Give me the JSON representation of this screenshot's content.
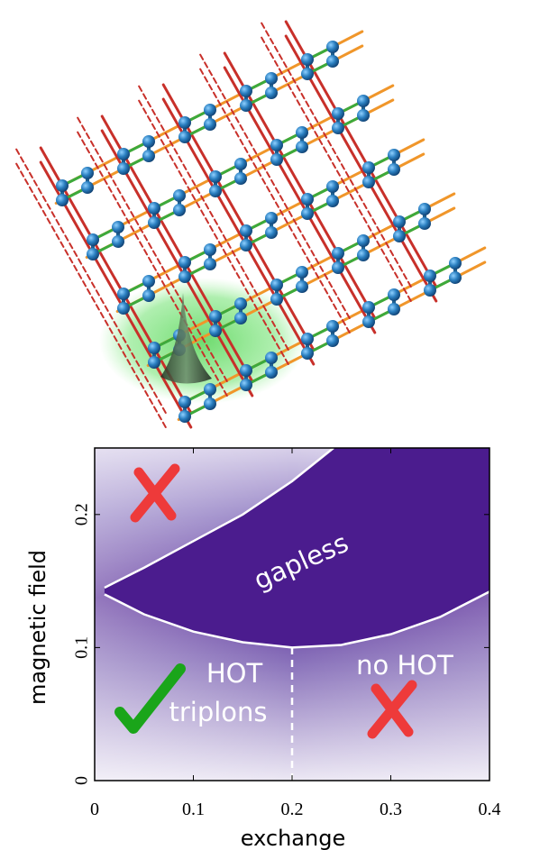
{
  "chart_data": {
    "type": "line",
    "x_label": "exchange",
    "y_label": "magnetic field",
    "xlim": [
      0,
      0.4
    ],
    "ylim": [
      0,
      0.25
    ],
    "xticks": [
      0,
      0.1,
      0.2,
      0.3,
      0.4
    ],
    "yticks": [
      0,
      0.1,
      0.2
    ],
    "series": [
      {
        "color": "#ffffff",
        "x": [
          0.01,
          0.05,
          0.1,
          0.15,
          0.2,
          0.242
        ],
        "values": [
          0.145,
          0.16,
          0.18,
          0.2,
          0.225,
          0.25
        ]
      },
      {
        "color": "#ffffff",
        "x": [
          0.01,
          0.05,
          0.1,
          0.15,
          0.2,
          0.25,
          0.3,
          0.35,
          0.4
        ],
        "values": [
          0.14,
          0.125,
          0.112,
          0.104,
          0.1,
          0.102,
          0.11,
          0.123,
          0.142
        ]
      },
      {
        "color": "#ffffff",
        "dashed": true,
        "x": [
          0.2,
          0.2
        ],
        "values": [
          0,
          0.1
        ]
      }
    ],
    "annotations": [
      "gapless",
      "HOT",
      "triplons",
      "no HOT"
    ]
  }
}
